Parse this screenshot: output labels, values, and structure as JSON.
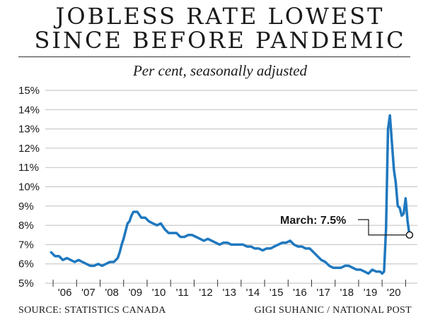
{
  "title_line1": "JOBLESS RATE LOWEST",
  "title_line2": "SINCE BEFORE PANDEMIC",
  "subtitle": "Per cent, seasonally adjusted",
  "source": "SOURCE: STATISTICS CANADA",
  "credit": "GIGI SUHANIC / NATIONAL POST",
  "colors": {
    "line": "#1f78bf",
    "text": "#1a1a1a",
    "grid": "#bfbfbf"
  },
  "chart_data": {
    "type": "line",
    "title": "JOBLESS RATE LOWEST SINCE BEFORE PANDEMIC",
    "subtitle": "Per cent, seasonally adjusted",
    "xlabel": "",
    "ylabel": "",
    "ylim": [
      5,
      15
    ],
    "y_ticks": [
      5,
      6,
      7,
      8,
      9,
      10,
      11,
      12,
      13,
      14,
      15
    ],
    "y_tick_labels": [
      "5%",
      "6%",
      "7%",
      "8%",
      "9%",
      "10%",
      "11%",
      "12%",
      "13%",
      "14%",
      "15%"
    ],
    "x_tick_labels": [
      "'06",
      "'07",
      "'08",
      "'09",
      "'10",
      "'11",
      "'12",
      "'13",
      "'14",
      "'15",
      "'16",
      "'17",
      "'18",
      "'19",
      "'20"
    ],
    "x_tick_years": [
      2006,
      2007,
      2008,
      2009,
      2010,
      2011,
      2012,
      2013,
      2014,
      2015,
      2016,
      2017,
      2018,
      2019,
      2020
    ],
    "xlim": [
      "2005-09",
      "2021-07"
    ],
    "grid": true,
    "annotation": {
      "text": "March: 7.5%",
      "x": "2021-03",
      "y": 7.5
    },
    "series": [
      {
        "x": [
          "2005-12",
          "2006-02",
          "2006-04",
          "2006-06",
          "2006-08",
          "2006-10",
          "2006-12",
          "2007-02",
          "2007-04",
          "2007-06",
          "2007-08",
          "2007-10",
          "2007-12",
          "2008-02",
          "2008-04",
          "2008-06",
          "2008-08",
          "2008-10",
          "2008-11",
          "2008-12",
          "2009-01",
          "2009-02",
          "2009-03",
          "2009-04",
          "2009-05",
          "2009-06",
          "2009-07",
          "2009-08",
          "2009-10",
          "2009-12",
          "2010-02",
          "2010-04",
          "2010-06",
          "2010-08",
          "2010-10",
          "2010-12",
          "2011-02",
          "2011-04",
          "2011-06",
          "2011-08",
          "2011-10",
          "2011-12",
          "2012-02",
          "2012-04",
          "2012-06",
          "2012-08",
          "2012-10",
          "2012-12",
          "2013-02",
          "2013-04",
          "2013-06",
          "2013-08",
          "2013-10",
          "2013-12",
          "2014-02",
          "2014-04",
          "2014-06",
          "2014-08",
          "2014-10",
          "2014-12",
          "2015-02",
          "2015-04",
          "2015-06",
          "2015-08",
          "2015-10",
          "2015-12",
          "2016-02",
          "2016-04",
          "2016-06",
          "2016-08",
          "2016-10",
          "2016-12",
          "2017-02",
          "2017-04",
          "2017-06",
          "2017-08",
          "2017-10",
          "2017-12",
          "2018-02",
          "2018-04",
          "2018-06",
          "2018-08",
          "2018-10",
          "2018-12",
          "2019-02",
          "2019-04",
          "2019-06",
          "2019-08",
          "2019-10",
          "2019-12",
          "2020-01",
          "2020-02",
          "2020-03",
          "2020-04",
          "2020-05",
          "2020-06",
          "2020-07",
          "2020-08",
          "2020-09",
          "2020-10",
          "2020-11",
          "2020-12",
          "2021-01",
          "2021-02",
          "2021-03"
        ],
        "y": [
          6.6,
          6.4,
          6.4,
          6.2,
          6.3,
          6.2,
          6.1,
          6.2,
          6.1,
          6.0,
          5.9,
          5.9,
          6.0,
          5.9,
          6.0,
          6.1,
          6.1,
          6.3,
          6.6,
          7.0,
          7.3,
          7.7,
          8.1,
          8.2,
          8.5,
          8.7,
          8.7,
          8.7,
          8.4,
          8.4,
          8.2,
          8.1,
          8.0,
          8.1,
          7.8,
          7.6,
          7.6,
          7.6,
          7.4,
          7.4,
          7.5,
          7.5,
          7.4,
          7.3,
          7.2,
          7.3,
          7.2,
          7.1,
          7.0,
          7.1,
          7.1,
          7.0,
          7.0,
          7.0,
          7.0,
          6.9,
          6.9,
          6.8,
          6.8,
          6.7,
          6.8,
          6.8,
          6.9,
          7.0,
          7.1,
          7.1,
          7.2,
          7.0,
          6.9,
          6.9,
          6.8,
          6.8,
          6.6,
          6.4,
          6.2,
          6.1,
          5.9,
          5.8,
          5.8,
          5.8,
          5.9,
          5.9,
          5.8,
          5.7,
          5.7,
          5.6,
          5.5,
          5.7,
          5.6,
          5.6,
          5.5,
          5.6,
          7.8,
          13.0,
          13.7,
          12.3,
          10.9,
          10.2,
          9.0,
          8.9,
          8.5,
          8.6,
          9.4,
          8.2,
          7.5
        ]
      }
    ]
  }
}
